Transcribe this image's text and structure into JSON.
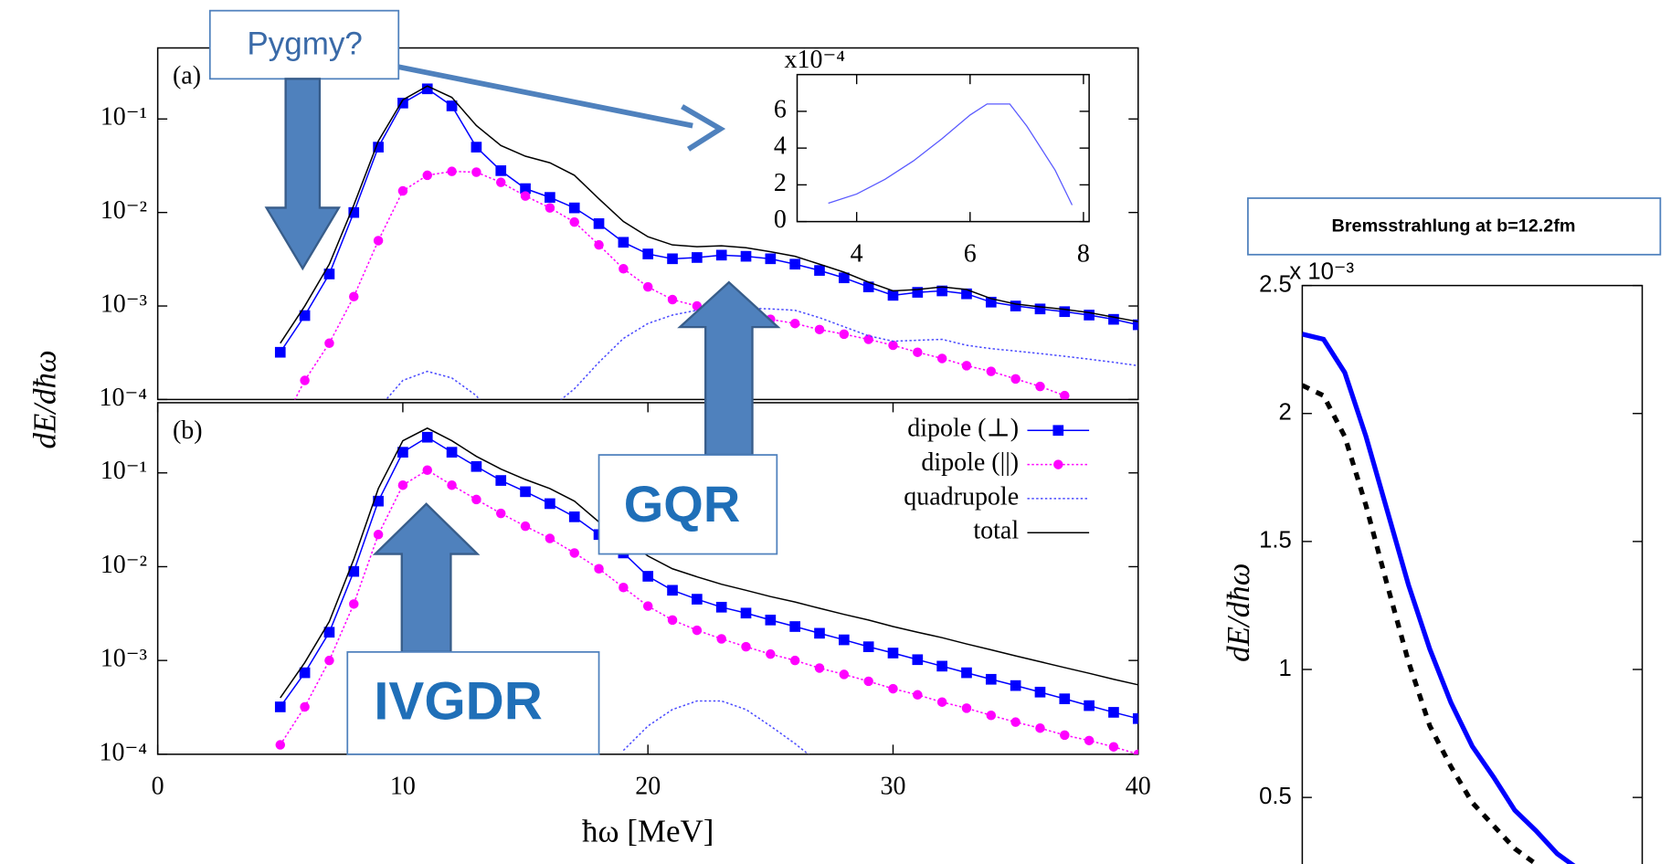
{
  "chart_data": [
    {
      "type": "line",
      "panel_label": "(a)",
      "ylabel": "dE/dħω",
      "log_y": true,
      "xlim": [
        0,
        40
      ],
      "ylim": [
        0.0001,
        0.575
      ],
      "yticks": [
        {
          "value": 0.0001,
          "label": "10⁻⁴"
        },
        {
          "value": 0.001,
          "label": "10⁻³"
        },
        {
          "value": 0.01,
          "label": "10⁻²"
        },
        {
          "value": 0.1,
          "label": "10⁻¹"
        }
      ],
      "x": [
        5,
        6,
        7,
        8,
        9,
        10,
        11,
        12,
        13,
        14,
        15,
        16,
        17,
        18,
        19,
        20,
        21,
        22,
        23,
        24,
        25,
        26,
        27,
        28,
        29,
        30,
        31,
        32,
        33,
        34,
        35,
        36,
        37,
        38,
        39,
        40
      ],
      "series": [
        {
          "color": "#0000ff",
          "marker": "square",
          "style": "solid",
          "values": [
            0.00032,
            0.00079,
            0.0022,
            0.01,
            0.05,
            0.148,
            0.21,
            0.138,
            0.05,
            0.028,
            0.018,
            0.0145,
            0.0112,
            0.0076,
            0.0048,
            0.0036,
            0.0032,
            0.0033,
            0.0035,
            0.0034,
            0.0032,
            0.0028,
            0.0024,
            0.002,
            0.0016,
            0.0013,
            0.0014,
            0.00145,
            0.00135,
            0.0011,
            0.001,
            0.00093,
            0.00087,
            0.0008,
            0.00072,
            0.00063
          ]
        },
        {
          "color": "#ff00ff",
          "marker": "circle",
          "style": "dotted",
          "values": [
            5e-05,
            0.00016,
            0.0004,
            0.00126,
            0.005,
            0.017,
            0.025,
            0.0275,
            0.027,
            0.021,
            0.015,
            0.0112,
            0.0079,
            0.0045,
            0.0025,
            0.0016,
            0.00117,
            0.001,
            0.00089,
            0.00079,
            0.00072,
            0.00065,
            0.00056,
            0.0005,
            0.00044,
            0.00038,
            0.00032,
            0.000275,
            0.00023,
            0.0002,
            0.000166,
            0.000138,
            0.00011,
            null,
            null,
            null
          ]
        },
        {
          "color": "#4a4aff",
          "marker": "none",
          "style": "dotted",
          "values": [
            null,
            null,
            null,
            null,
            8e-05,
            0.00016,
            0.0002,
            0.00017,
            0.00011,
            5e-05,
            null,
            8e-05,
            0.00013,
            0.00025,
            0.00045,
            0.00065,
            0.0008,
            0.0009,
            0.00095,
            0.00095,
            0.00093,
            0.0009,
            0.00075,
            0.0006,
            0.00048,
            0.00042,
            0.00043,
            0.00044,
            0.00038,
            0.00035,
            0.00033,
            0.00031,
            0.00029,
            0.00027,
            0.00025,
            0.00023
          ]
        },
        {
          "color": "#000000",
          "marker": "none",
          "style": "solid",
          "values": [
            0.0004,
            0.001,
            0.0028,
            0.012,
            0.058,
            0.16,
            0.225,
            0.17,
            0.085,
            0.052,
            0.04,
            0.034,
            0.025,
            0.014,
            0.008,
            0.0055,
            0.0045,
            0.0043,
            0.0044,
            0.0042,
            0.0038,
            0.0034,
            0.0028,
            0.0023,
            0.0018,
            0.00145,
            0.0015,
            0.0016,
            0.0015,
            0.0012,
            0.00105,
            0.00098,
            0.00092,
            0.00085,
            0.00076,
            0.00068
          ]
        }
      ]
    },
    {
      "type": "line",
      "panel_label": "(b)",
      "xlabel": "ħω [MeV]",
      "log_y": true,
      "legend": "upper right",
      "xlim": [
        0,
        40
      ],
      "ylim": [
        0.0001,
        0.56
      ],
      "xticks": [
        0,
        10,
        20,
        30,
        40
      ],
      "yticks": [
        {
          "value": 0.0001,
          "label": "10⁻⁴"
        },
        {
          "value": 0.001,
          "label": "10⁻³"
        },
        {
          "value": 0.01,
          "label": "10⁻²"
        },
        {
          "value": 0.1,
          "label": "10⁻¹"
        }
      ],
      "x": [
        5,
        6,
        7,
        8,
        9,
        10,
        11,
        12,
        13,
        14,
        15,
        16,
        17,
        18,
        19,
        20,
        21,
        22,
        23,
        24,
        25,
        26,
        27,
        28,
        29,
        30,
        31,
        32,
        33,
        34,
        35,
        36,
        37,
        38,
        39,
        40
      ],
      "series": [
        {
          "name": "dipole (⊥)",
          "color": "#0000ff",
          "marker": "square",
          "style": "solid",
          "values": [
            0.00032,
            0.00074,
            0.002,
            0.0089,
            0.05,
            0.166,
            0.24,
            0.166,
            0.117,
            0.083,
            0.063,
            0.047,
            0.034,
            0.022,
            0.014,
            0.0079,
            0.0056,
            0.0045,
            0.0037,
            0.0032,
            0.0027,
            0.0023,
            0.00195,
            0.00166,
            0.0014,
            0.0012,
            0.00102,
            0.00087,
            0.00074,
            0.00063,
            0.00054,
            0.00046,
            0.00039,
            0.00033,
            0.00028,
            0.00024
          ]
        },
        {
          "name": "dipole (||)",
          "color": "#ff00ff",
          "marker": "circle",
          "style": "dotted",
          "values": [
            0.000126,
            0.00032,
            0.001,
            0.004,
            0.022,
            0.074,
            0.107,
            0.074,
            0.052,
            0.037,
            0.027,
            0.02,
            0.014,
            0.0095,
            0.006,
            0.0038,
            0.0027,
            0.0021,
            0.0017,
            0.0014,
            0.00117,
            0.001,
            0.00083,
            0.00071,
            0.0006,
            0.0005,
            0.00043,
            0.00036,
            0.00031,
            0.00026,
            0.00022,
            0.00019,
            0.00016,
            0.00014,
            0.00012,
            0.0001
          ]
        },
        {
          "name": "quadrupole",
          "color": "#4a4aff",
          "marker": "none",
          "style": "dotted",
          "values": [
            null,
            null,
            null,
            null,
            null,
            null,
            null,
            null,
            null,
            null,
            null,
            null,
            null,
            null,
            0.00011,
            0.0002,
            0.0003,
            0.00037,
            0.00037,
            0.0003,
            0.0002,
            0.00013,
            8e-05,
            null,
            null,
            null,
            null,
            null,
            null,
            null,
            null,
            null,
            null,
            null,
            null,
            null
          ]
        },
        {
          "name": "total",
          "color": "#000000",
          "marker": "none",
          "style": "solid",
          "values": [
            0.0004,
            0.00095,
            0.0026,
            0.012,
            0.068,
            0.22,
            0.3,
            0.22,
            0.15,
            0.11,
            0.085,
            0.068,
            0.05,
            0.03,
            0.02,
            0.013,
            0.0095,
            0.0078,
            0.0065,
            0.0056,
            0.0048,
            0.0042,
            0.0036,
            0.0031,
            0.0027,
            0.0023,
            0.002,
            0.00175,
            0.0015,
            0.0013,
            0.00112,
            0.00097,
            0.00084,
            0.00073,
            0.00063,
            0.00055
          ]
        }
      ]
    },
    {
      "type": "line",
      "y_multiplier": "x10⁻⁴",
      "xlim": [
        2.95,
        8.1
      ],
      "ylim": [
        0,
        8
      ],
      "xticks": [
        4,
        6,
        8
      ],
      "yticks": [
        0,
        2,
        4,
        6
      ],
      "x": [
        3.5,
        4,
        4.5,
        5,
        5.5,
        6,
        6.3,
        6.7,
        7,
        7.5,
        7.8
      ],
      "series": [
        {
          "color": "#5a5aff",
          "marker": "none",
          "style": "solid",
          "values": [
            1.0,
            1.5,
            2.3,
            3.3,
            4.5,
            5.8,
            6.4,
            6.4,
            5.2,
            2.8,
            0.9
          ]
        }
      ]
    },
    {
      "type": "line",
      "title": "Bremsstrahlung at b=12.2fm",
      "ylabel": "dE/dħω",
      "y_multiplier": "x 10⁻³",
      "ylim": [
        0.24,
        2.5
      ],
      "yticks": [
        0.5,
        1,
        1.5,
        2,
        2.5
      ],
      "categories": [
        null,
        null,
        null,
        null,
        null,
        null,
        null,
        null,
        null,
        null,
        null,
        null,
        null,
        null,
        null,
        null,
        null
      ],
      "series": [
        {
          "color": "#0000ff",
          "marker": "none",
          "style": "solid",
          "values": [
            2.31,
            2.29,
            2.16,
            1.91,
            1.62,
            1.33,
            1.08,
            0.87,
            0.7,
            0.58,
            0.45,
            0.37,
            0.28,
            0.22,
            null,
            null,
            null
          ]
        },
        {
          "color": "#000000",
          "marker": "none",
          "style": "dotted",
          "values": [
            2.11,
            2.07,
            1.91,
            1.64,
            1.33,
            1.03,
            0.78,
            0.62,
            0.48,
            0.39,
            0.3,
            0.24,
            null,
            null,
            null,
            null,
            null
          ]
        }
      ]
    }
  ],
  "annotations": {
    "pygmy": "Pygmy?",
    "gqr": "GQR",
    "ivgdr": "IVGDR"
  }
}
